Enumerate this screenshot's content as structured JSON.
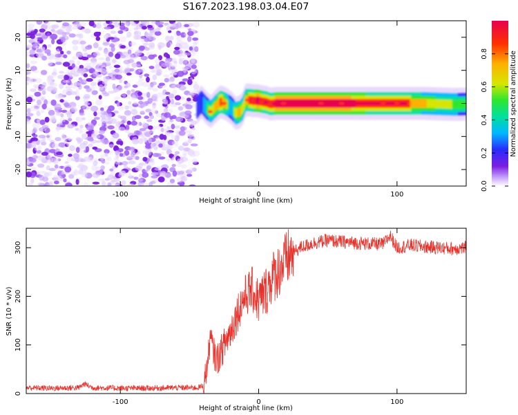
{
  "title": "S167.2023.198.03.04.E07",
  "colors": {
    "snr_line": "#e8312a",
    "frame": "#000000",
    "cmap": [
      "#ffffff",
      "#c9a6ff",
      "#7a1fe0",
      "#2a2bff",
      "#00b7ff",
      "#00e0a0",
      "#2ee62e",
      "#d6e600",
      "#ffb000",
      "#ff3000",
      "#e8004f"
    ]
  },
  "chart_data": [
    {
      "type": "heatmap",
      "title": "",
      "xlabel": "Height of straight line (km)",
      "ylabel": "Frequency (Hz)",
      "xlim": [
        -168,
        150
      ],
      "ylim": [
        -25,
        25
      ],
      "xticks": [
        -100,
        0,
        100
      ],
      "yticks": [
        -20,
        -10,
        0,
        10,
        20
      ],
      "xtick_labels": [
        "-100",
        "0",
        "100"
      ],
      "ytick_labels": [
        "-20",
        "-10",
        "0",
        "10",
        "20"
      ],
      "colorbar": {
        "label": "Normalized spectral amplitude",
        "range": [
          0,
          1
        ],
        "ticks": [
          0.0,
          0.2,
          0.4,
          0.6,
          0.8
        ],
        "tick_labels": [
          "0.0",
          "0.2",
          "0.4",
          "0.6",
          "0.8"
        ]
      },
      "noise_region_x": [
        -168,
        -45
      ],
      "ridge": {
        "x": [
          -45,
          -42,
          -38,
          -35,
          -32,
          -28,
          -25,
          -22,
          -20,
          -17,
          -14,
          -12,
          -10,
          -7,
          -4,
          -1,
          2,
          5,
          8,
          12,
          20,
          40,
          60,
          80,
          100,
          120,
          140,
          150
        ],
        "freq": [
          -1.2,
          0.5,
          -1.5,
          -2.5,
          -1.0,
          0.5,
          0.0,
          -0.8,
          -1.5,
          -3.0,
          -2.5,
          -1.5,
          1.0,
          1.0,
          0.8,
          0.8,
          0.5,
          0.3,
          -0.2,
          0.0,
          0.0,
          0.0,
          0.0,
          0.0,
          0.0,
          0.0,
          -0.3,
          -0.2
        ],
        "amplitude": [
          0.25,
          0.45,
          0.6,
          0.7,
          0.75,
          0.85,
          0.8,
          0.6,
          0.55,
          0.7,
          0.8,
          0.65,
          0.75,
          0.85,
          0.9,
          0.95,
          0.9,
          0.9,
          0.85,
          0.95,
          0.97,
          0.97,
          0.95,
          0.9,
          0.9,
          0.75,
          0.65,
          0.6
        ]
      }
    },
    {
      "type": "line",
      "title": "",
      "xlabel": "Height of straight line (km)",
      "ylabel": "SNR (10 * v/v)",
      "xlim": [
        -168,
        150
      ],
      "ylim": [
        0,
        340
      ],
      "xticks": [
        -100,
        0,
        100
      ],
      "yticks": [
        0,
        100,
        200,
        300
      ],
      "xtick_labels": [
        "-100",
        "0",
        "100"
      ],
      "ytick_labels": [
        "0",
        "100",
        "200",
        "300"
      ],
      "series": [
        {
          "name": "SNR",
          "x": [
            -168,
            -150,
            -130,
            -126,
            -120,
            -100,
            -80,
            -60,
            -45,
            -40,
            -37,
            -35,
            -32,
            -30,
            -25,
            -20,
            -15,
            -10,
            -5,
            0,
            5,
            10,
            15,
            20,
            25,
            30,
            40,
            50,
            60,
            70,
            80,
            90,
            95,
            100,
            110,
            120,
            130,
            140,
            150
          ],
          "values": [
            12,
            11,
            12,
            20,
            12,
            11,
            11,
            12,
            12,
            15,
            60,
            115,
            80,
            70,
            100,
            130,
            170,
            200,
            215,
            190,
            210,
            240,
            255,
            275,
            290,
            300,
            310,
            315,
            312,
            310,
            308,
            307,
            325,
            300,
            305,
            302,
            300,
            298,
            300
          ]
        }
      ]
    }
  ]
}
